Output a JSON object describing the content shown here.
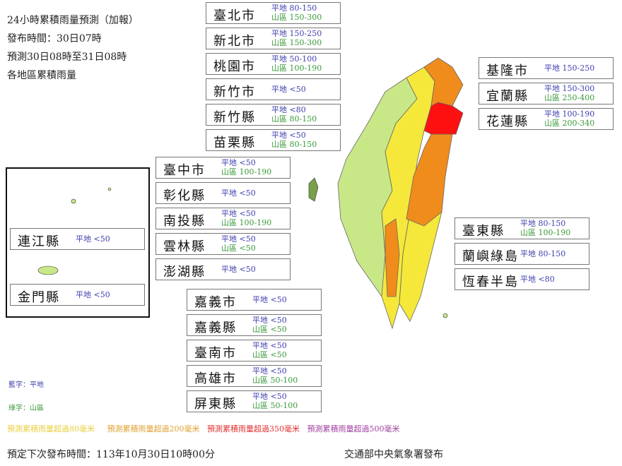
{
  "title_lines": [
    "24小時累積雨量預測（加報）",
    "發布時間：30日07時",
    "預測30日08時至31日08時",
    "各地區累積雨量"
  ],
  "plain_label": "平地",
  "mountain_label": "山區",
  "regions": [
    {
      "name": "臺北市",
      "plain": "80-150",
      "mountain": "150-300"
    },
    {
      "name": "新北市",
      "plain": "150-250",
      "mountain": "150-300"
    },
    {
      "name": "桃園市",
      "plain": "50-100",
      "mountain": "100-190"
    },
    {
      "name": "新竹市",
      "plain": "<50"
    },
    {
      "name": "新竹縣",
      "plain": "<80",
      "mountain": "80-150"
    },
    {
      "name": "苗栗縣",
      "plain": "<50",
      "mountain": "80-150"
    },
    {
      "name": "臺中市",
      "plain": "<50",
      "mountain": "100-190"
    },
    {
      "name": "彰化縣",
      "plain": "<50"
    },
    {
      "name": "南投縣",
      "plain": "<50",
      "mountain": "100-190"
    },
    {
      "name": "雲林縣",
      "plain": "<50",
      "mountain": "<50"
    },
    {
      "name": "澎湖縣",
      "plain": "<50"
    },
    {
      "name": "嘉義市",
      "plain": "<50"
    },
    {
      "name": "嘉義縣",
      "plain": "<50",
      "mountain": "<50"
    },
    {
      "name": "臺南市",
      "plain": "<50",
      "mountain": "<50"
    },
    {
      "name": "高雄市",
      "plain": "<50",
      "mountain": "50-100"
    },
    {
      "name": "屏東縣",
      "plain": "<50",
      "mountain": "50-100"
    },
    {
      "name": "基隆市",
      "plain": "150-250"
    },
    {
      "name": "宜蘭縣",
      "plain": "150-300",
      "mountain": "250-400"
    },
    {
      "name": "花蓮縣",
      "plain": "100-190",
      "mountain": "200-340"
    },
    {
      "name": "臺東縣",
      "plain": "80-150",
      "mountain": "100-190"
    },
    {
      "name": "蘭嶼綠島",
      "plain": "80-150"
    },
    {
      "name": "恆春半島",
      "plain": "<80"
    },
    {
      "name": "連江縣",
      "plain": "<50"
    },
    {
      "name": "金門縣",
      "plain": "<50"
    }
  ],
  "key": {
    "blue": "藍字：平地",
    "green": "綠字：山區"
  },
  "legend": [
    {
      "label": "預測累積雨量超過80毫米",
      "color": "#e8d040"
    },
    {
      "label": "預測累積雨量超過200毫米",
      "color": "#e0a030"
    },
    {
      "label": "預測累積雨量超過350毫米",
      "color": "#e03030"
    },
    {
      "label": "預測累積雨量超過500毫米",
      "color": "#a040a0"
    }
  ],
  "next_issue": "預定下次發布時間：113年10月30日10時00分",
  "publisher": "交通部中央氣象署發布",
  "map_colors": {
    "under80": "#c8e888",
    "over80": "#f5e83a",
    "over200": "#f08c1c",
    "over350": "#ff1010"
  }
}
